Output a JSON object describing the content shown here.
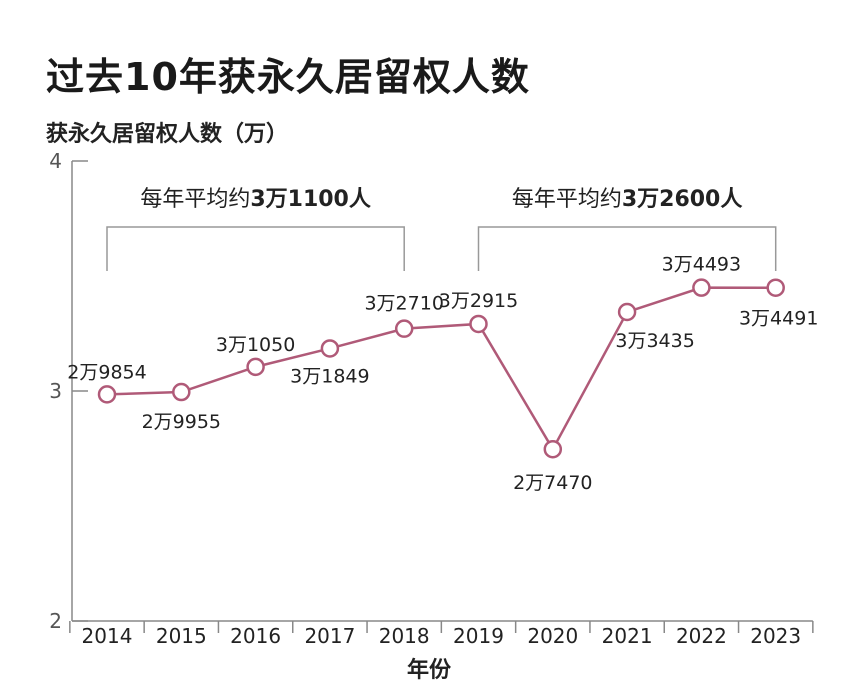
{
  "chart_data": {
    "type": "line",
    "title": "过去10年获永久居留权人数",
    "ylabel": "获永久居留权人数（万）",
    "xlabel": "年份",
    "ylim": [
      2,
      4
    ],
    "yticks": [
      "2",
      "3",
      "4"
    ],
    "categories": [
      "2014",
      "2015",
      "2016",
      "2017",
      "2018",
      "2019",
      "2020",
      "2021",
      "2022",
      "2023"
    ],
    "series": [
      {
        "values": [
          29854,
          29955,
          31050,
          31849,
          32710,
          32915,
          27470,
          33435,
          34493,
          34491
        ]
      }
    ],
    "data_labels": [
      "2万9854",
      "2万9955",
      "3万1050",
      "3万1849",
      "3万2710",
      "3万2915",
      "2万7470",
      "3万3435",
      "3万4493",
      "3万4491"
    ],
    "annotations": [
      {
        "text_normal": "每年平均约",
        "text_bold": "3万1100人",
        "from": "2014",
        "to": "2018"
      },
      {
        "text_normal": "每年平均约",
        "text_bold": "3万2600人",
        "from": "2019",
        "to": "2023"
      }
    ],
    "line_color": "#b05a78",
    "grid": false
  }
}
